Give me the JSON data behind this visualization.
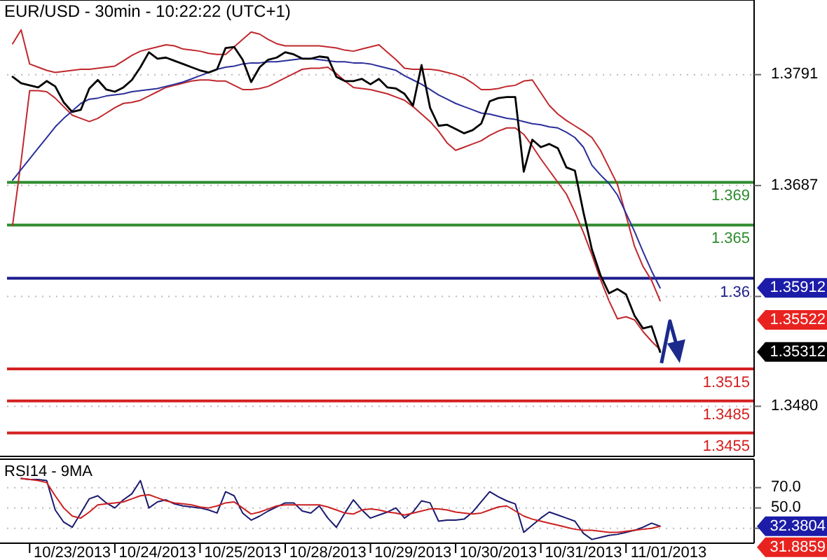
{
  "chart_data": [
    {
      "type": "line",
      "title": "EUR/USD - 30min - 10:22:22 (UTC+1)",
      "ylim": [
        1.3433,
        1.3861
      ],
      "yticks": [
        1.3791,
        1.3687,
        {
          "value": 1.3583,
          "label": null
        },
        {
          "value": 1.348,
          "label": "1.3480"
        }
      ],
      "grid": "y",
      "tick_labels": "y",
      "categories": [
        null,
        null,
        null,
        null,
        null,
        null,
        null,
        null,
        null,
        null,
        null,
        null,
        null,
        null,
        null,
        null,
        null,
        null,
        null,
        null,
        null,
        null,
        null,
        null,
        null,
        null,
        null,
        null,
        null,
        null,
        null,
        null,
        null,
        null,
        null,
        null,
        null,
        null,
        null,
        null,
        null,
        null,
        null,
        null,
        null,
        null,
        null,
        null,
        null,
        null,
        null,
        null,
        null,
        null,
        null,
        null,
        null,
        null,
        null,
        null,
        null,
        null,
        null,
        null,
        null,
        null,
        null,
        null,
        null,
        null,
        null,
        null,
        null,
        null,
        null,
        null,
        null,
        null
      ],
      "series": [
        {
          "color": "#c0282d",
          "values": [
            1.382,
            1.3833,
            1.3801,
            1.3798,
            1.3795,
            1.3793,
            1.3794,
            1.3795,
            1.3796,
            1.3796,
            1.3797,
            1.3798,
            1.3799,
            1.3804,
            1.3809,
            1.3813,
            1.3815,
            1.3817,
            1.3819,
            1.3818,
            1.3815,
            1.3814,
            1.3813,
            1.3811,
            1.381,
            1.381,
            1.3817,
            1.3824,
            1.3831,
            1.3829,
            1.3824,
            1.382,
            1.3818,
            1.3818,
            1.3818,
            1.3818,
            1.3818,
            1.3817,
            1.3816,
            1.3814,
            1.3813,
            1.3815,
            1.3817,
            1.3819,
            1.3812,
            1.3805,
            1.3797,
            1.3796,
            1.3796,
            1.3796,
            1.3795,
            1.3793,
            1.3791,
            1.3788,
            1.3783,
            1.3777,
            1.3777,
            1.3778,
            1.378,
            1.3781,
            1.3785,
            1.3786,
            1.3774,
            1.3762,
            1.3754,
            1.3748,
            1.3743,
            1.3738,
            1.3732,
            1.372,
            1.3704,
            1.3688,
            1.3659,
            1.363,
            1.3611,
            1.3598,
            1.3579,
            null
          ]
        },
        {
          "color": "#c0282d",
          "values": [
            1.365,
            1.371,
            1.3776,
            1.3776,
            1.3775,
            1.3769,
            1.3761,
            1.3753,
            1.375,
            1.3747,
            1.375,
            1.3755,
            1.376,
            1.3764,
            1.3765,
            1.3767,
            1.3771,
            1.3775,
            1.3779,
            1.3781,
            1.3783,
            1.3785,
            1.3786,
            1.3786,
            1.3785,
            1.3785,
            1.3781,
            1.3777,
            1.3777,
            1.3778,
            1.378,
            1.3784,
            1.3788,
            1.3792,
            1.3796,
            1.3797,
            1.3797,
            1.3798,
            1.3792,
            1.3785,
            1.3779,
            1.3778,
            1.3777,
            1.3775,
            1.3773,
            1.377,
            1.3767,
            1.3761,
            1.3754,
            1.3747,
            1.3738,
            1.3727,
            1.372,
            1.3723,
            1.3726,
            1.3729,
            1.3734,
            1.3738,
            1.3741,
            1.3741,
            1.3735,
            1.3724,
            1.3712,
            1.3701,
            1.369,
            1.3679,
            1.3662,
            1.3643,
            1.3622,
            1.3599,
            1.3579,
            1.3562,
            1.3564,
            1.3561,
            1.355,
            1.3541,
            1.3533,
            null
          ]
        },
        {
          "color": "#2a2f9a",
          "values": [
            1.3692,
            1.3702,
            1.3712,
            1.3722,
            1.3732,
            1.3742,
            1.375,
            1.3757,
            1.3764,
            1.3768,
            1.3769,
            1.3771,
            1.3772,
            1.3773,
            1.3775,
            1.3776,
            1.3777,
            1.3778,
            1.378,
            1.3782,
            1.3784,
            1.3787,
            1.379,
            1.3793,
            1.3796,
            1.3798,
            1.3799,
            1.3801,
            1.3802,
            1.3802,
            1.3803,
            1.3803,
            1.3804,
            1.3805,
            1.3806,
            1.3806,
            1.3805,
            1.3804,
            1.3803,
            1.3803,
            1.3802,
            1.3802,
            1.3801,
            1.3799,
            1.3797,
            1.3795,
            1.379,
            1.3786,
            1.3782,
            1.3777,
            1.3772,
            1.3768,
            1.3764,
            1.3761,
            1.3758,
            1.3755,
            1.3754,
            1.3752,
            1.375,
            1.3749,
            1.3747,
            1.3745,
            1.3744,
            1.3742,
            1.3741,
            1.3737,
            1.3732,
            1.3723,
            1.3706,
            1.3697,
            1.3689,
            1.3678,
            1.3661,
            1.3644,
            1.3625,
            1.3607,
            1.3591,
            null
          ]
        },
        {
          "color": "#000000",
          "values": [
            1.3789,
            1.3783,
            1.3781,
            1.3779,
            1.3785,
            1.378,
            1.3765,
            1.3756,
            1.3758,
            1.3778,
            1.3786,
            1.3777,
            1.3775,
            1.3779,
            1.3786,
            1.3798,
            1.3812,
            1.3806,
            1.3807,
            1.3804,
            1.3801,
            1.3798,
            1.3795,
            1.3793,
            1.3796,
            1.3816,
            1.3817,
            1.3805,
            1.3784,
            1.3798,
            1.3805,
            1.3807,
            1.3812,
            1.381,
            1.3806,
            1.3806,
            1.3808,
            1.3807,
            1.3789,
            1.3785,
            1.3785,
            1.3787,
            1.3782,
            1.3787,
            1.3779,
            1.3778,
            1.3773,
            1.3762,
            1.38,
            1.376,
            1.3743,
            1.3744,
            1.374,
            1.3736,
            1.3739,
            1.3745,
            1.3766,
            1.3769,
            1.377,
            1.377,
            1.37,
            1.373,
            1.3723,
            1.3726,
            1.3722,
            1.3704,
            1.3701,
            1.3662,
            1.3627,
            1.3603,
            1.3586,
            1.359,
            1.3585,
            1.3565,
            1.3553,
            1.3555,
            1.3531,
            null
          ]
        }
      ],
      "ref_lines": [
        {
          "axis": "y",
          "value": 1.369,
          "label": "1.369",
          "color": "#2e8b2e"
        },
        {
          "axis": "y",
          "value": 1.365,
          "label": "1.365",
          "color": "#2e8b2e"
        },
        {
          "axis": "y",
          "value": 1.36,
          "label": "1.36",
          "color": "#1c1c8c"
        },
        {
          "axis": "y",
          "value": 1.3515,
          "label": "1.3515",
          "color": "#d42020"
        },
        {
          "axis": "y",
          "value": 1.3485,
          "label": "1.3485",
          "color": "#d42020"
        },
        {
          "axis": "y",
          "value": 1.3455,
          "label": "1.3455",
          "color": "#d42020"
        }
      ],
      "annotations": [
        "1.35912",
        "1.35522",
        "1.35312"
      ]
    },
    {
      "type": "line",
      "title": "RSI14 - 9MA",
      "ylim": [
        15.3,
        98
      ],
      "yticks": [
        {
          "value": 70,
          "label": "70.0"
        },
        {
          "value": 50,
          "label": "50.0"
        },
        {
          "value": 30,
          "label": null
        }
      ],
      "grid": "y",
      "categories": [
        null,
        null,
        null,
        null,
        null,
        null,
        null,
        "10/23/2013",
        null,
        null,
        null,
        null,
        null,
        null,
        null,
        null,
        null,
        "10/24/2013",
        null,
        null,
        null,
        null,
        null,
        null,
        null,
        null,
        null,
        "10/25/2013",
        null,
        null,
        null,
        null,
        null,
        null,
        null,
        null,
        null,
        "10/28/2013",
        null,
        null,
        null,
        null,
        null,
        null,
        null,
        null,
        null,
        "10/29/2013",
        null,
        null,
        null,
        null,
        null,
        null,
        null,
        null,
        null,
        "10/30/2013",
        null,
        null,
        null,
        null,
        null,
        null,
        null,
        null,
        null,
        "10/31/2013",
        null,
        null,
        null,
        null,
        null,
        null,
        null,
        null,
        null,
        "11/01/2013"
      ],
      "series": [
        {
          "color": "#1a1a70",
          "values": [
            null,
            79,
            78,
            78,
            77,
            48,
            36,
            31,
            45,
            59,
            62,
            55,
            50,
            58,
            64,
            77,
            50,
            56,
            58,
            54,
            52,
            51,
            50,
            48,
            45,
            66,
            62,
            45,
            38,
            42,
            47,
            51,
            55,
            55,
            47,
            45,
            52,
            40,
            31,
            45,
            58,
            48,
            40,
            43,
            46,
            50,
            40,
            46,
            57,
            55,
            37,
            38,
            38,
            39,
            46,
            56,
            66,
            61,
            57,
            54,
            26,
            33,
            40,
            46,
            43,
            40,
            37,
            25,
            19,
            21,
            23,
            24,
            26,
            28,
            31,
            35,
            32,
            null
          ]
        },
        {
          "color": "#cc2020",
          "values": [
            null,
            79,
            78,
            77,
            75,
            62,
            50,
            42,
            40,
            46,
            53,
            54,
            55,
            56,
            59,
            62,
            63,
            60,
            57,
            55,
            54,
            53,
            51,
            50,
            52,
            55,
            56,
            50,
            44,
            46,
            49,
            52,
            53,
            53,
            53,
            53,
            53,
            51,
            48,
            45,
            44,
            48,
            49,
            48,
            46,
            45,
            43,
            45,
            47,
            49,
            49,
            48,
            46,
            45,
            44,
            45,
            48,
            51,
            52,
            47,
            42,
            39,
            37,
            35,
            33,
            31,
            29,
            28,
            28,
            27,
            26,
            26,
            27,
            28,
            29,
            30,
            32,
            null
          ]
        }
      ],
      "annotations": [
        "32.3804",
        "31.8859"
      ]
    }
  ]
}
